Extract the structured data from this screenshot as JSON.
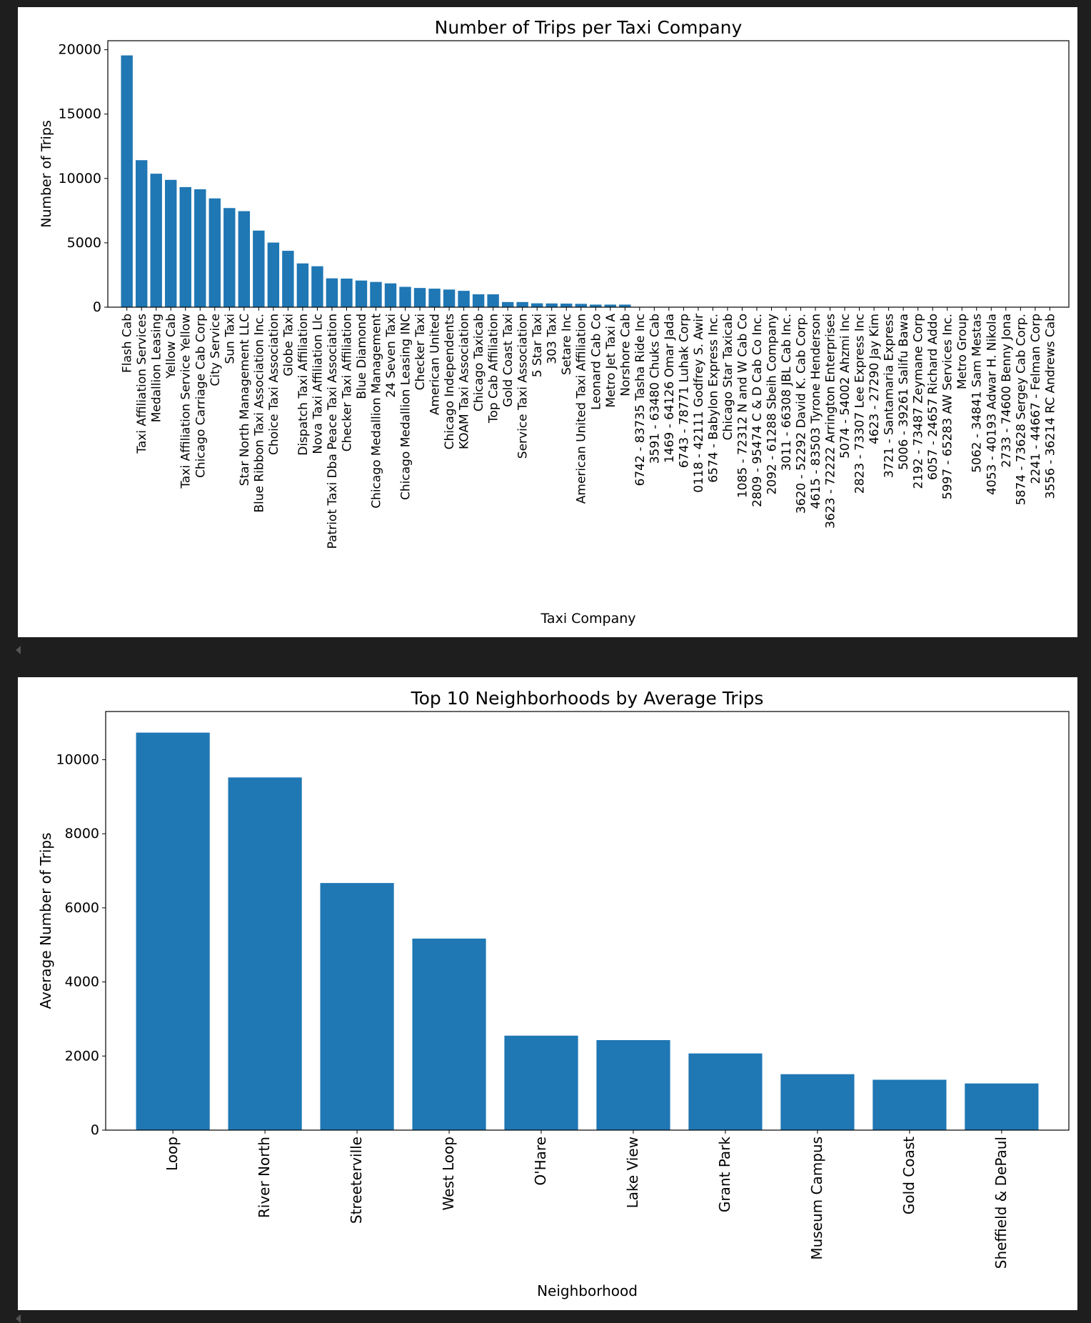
{
  "colors": {
    "bar": "#1f77b4",
    "axis": "#000000",
    "background": "#ffffff",
    "page": "#1e1e1e"
  },
  "chart_data": [
    {
      "type": "bar",
      "title": "Number of Trips per Taxi Company",
      "xlabel": "Taxi Company",
      "ylabel": "Number of Trips",
      "ylim": [
        0,
        20700
      ],
      "yticks": [
        0,
        5000,
        10000,
        15000,
        20000
      ],
      "categories": [
        "Flash Cab",
        "Taxi Affiliation Services",
        "Medallion Leasing",
        "Yellow Cab",
        "Taxi Affiliation Service Yellow",
        "Chicago Carriage Cab Corp",
        "City Service",
        "Sun Taxi",
        "Star North Management LLC",
        "Blue Ribbon Taxi Association Inc.",
        "Choice Taxi Association",
        "Globe Taxi",
        "Dispatch Taxi Affiliation",
        "Nova Taxi Affiliation Llc",
        "Patriot Taxi Dba Peace Taxi Association",
        "Checker Taxi Affiliation",
        "Blue Diamond",
        "Chicago Medallion Management",
        "24 Seven Taxi",
        "Chicago Medallion Leasing INC",
        "Checker Taxi",
        "American United",
        "Chicago Independents",
        "KOAM Taxi Association",
        "Chicago Taxicab",
        "Top Cab Affiliation",
        "Gold Coast Taxi",
        "Service Taxi Association",
        "5 Star Taxi",
        "303 Taxi",
        "Setare Inc",
        "American United Taxi Affiliation",
        "Leonard Cab Co",
        "Metro Jet Taxi A",
        "Norshore Cab",
        "6742 - 83735 Tasha Ride Inc",
        "3591 - 63480 Chuks Cab",
        "1469 - 64126 Omar Jada",
        "6743 - 78771 Luhak Corp",
        "0118 - 42111 Godfrey S. Awir",
        "6574 - Babylon Express Inc.",
        "Chicago Star Taxicab",
        "1085 - 72312 N and W Cab Co",
        "2809 - 95474 C & D Cab Co Inc.",
        "2092 - 61288 Sbeih Company",
        "3011 - 66308 JBL Cab Inc.",
        "3620 - 52292 David K. Cab Corp.",
        "4615 - 83503 Tyrone Henderson",
        "3623 - 72222 Arrington Enterprises",
        "5074 - 54002 Ahzmi Inc",
        "2823 - 73307 Lee Express Inc",
        "4623 - 27290 Jay Kim",
        "3721 - Santamaria Express",
        "5006 - 39261 Salifu Bawa",
        "2192 - 73487 Zeymane Corp",
        "6057 - 24657 Richard Addo",
        "5997 - 65283 AW Services Inc.",
        "Metro Group",
        "5062 - 34841 Sam Mestas",
        "4053 - 40193 Adwar H. Nikola",
        "2733 - 74600 Benny Jona",
        "5874 - 73628 Sergey Cab Corp.",
        "2241 - 44667 - Felman Corp",
        "3556 - 36214 RC Andrews Cab"
      ],
      "values": [
        19560,
        11420,
        10370,
        9890,
        9330,
        9160,
        8450,
        7700,
        7460,
        5950,
        5020,
        4380,
        3400,
        3180,
        2240,
        2220,
        2070,
        1960,
        1850,
        1580,
        1490,
        1440,
        1370,
        1270,
        1000,
        1000,
        400,
        400,
        300,
        290,
        280,
        260,
        200,
        200,
        200,
        30,
        30,
        30,
        30,
        30,
        30,
        25,
        20,
        20,
        20,
        20,
        20,
        20,
        20,
        20,
        20,
        20,
        10,
        10,
        10,
        10,
        10,
        10,
        10,
        10,
        10,
        10,
        10,
        5
      ]
    },
    {
      "type": "bar",
      "title": "Top 10 Neighborhoods by Average Trips",
      "xlabel": "Neighborhood",
      "ylabel": "Average Number of Trips",
      "ylim": [
        0,
        11300
      ],
      "yticks": [
        0,
        2000,
        4000,
        6000,
        8000,
        10000
      ],
      "categories": [
        "Loop",
        "River North",
        "Streeterville",
        "West Loop",
        "O'Hare",
        "Lake View",
        "Grant Park",
        "Museum Campus",
        "Gold Coast",
        "Sheffield & DePaul"
      ],
      "values": [
        10730,
        9520,
        6670,
        5170,
        2550,
        2430,
        2070,
        1510,
        1360,
        1260
      ]
    }
  ]
}
